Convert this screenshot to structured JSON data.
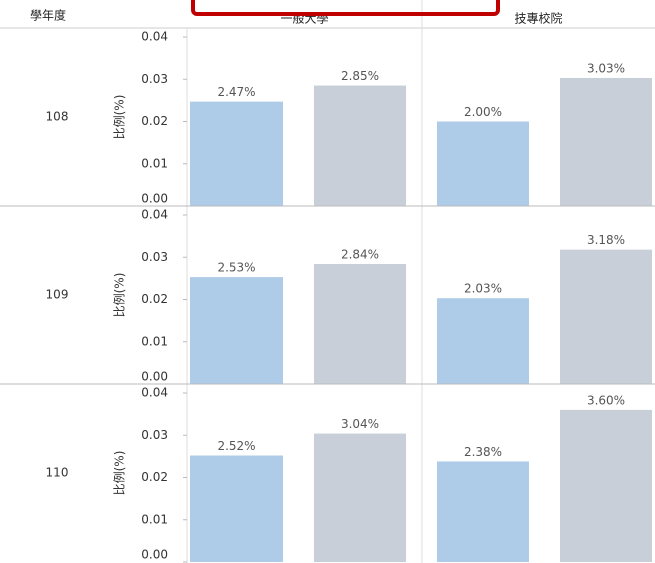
{
  "chart_data": {
    "type": "bar",
    "row_header": "學年度",
    "y_label": "比例(%)",
    "columns": [
      "一般大學",
      "技專校院"
    ],
    "colors": [
      "#aecbe8",
      "#c9cfd8"
    ],
    "ylim": [
      0,
      0.04
    ],
    "yticks": [
      {
        "value": 0,
        "label": "0.00"
      },
      0.01,
      0.02,
      0.03,
      0.04
    ],
    "rows": [
      {
        "label": "108",
        "cells": [
          {
            "values": [
              0.0247,
              0.0285
            ],
            "value_labels": [
              "2.47%",
              "2.85%"
            ]
          },
          {
            "values": [
              0.02,
              0.0303
            ],
            "value_labels": [
              "2.00%",
              "3.03%"
            ]
          }
        ]
      },
      {
        "label": "109",
        "cells": [
          {
            "values": [
              0.0253,
              0.0284
            ],
            "value_labels": [
              "2.53%",
              "2.84%"
            ]
          },
          {
            "values": [
              0.0203,
              0.0318
            ],
            "value_labels": [
              "2.03%",
              "3.18%"
            ]
          }
        ]
      },
      {
        "label": "110",
        "cells": [
          {
            "values": [
              0.0252,
              0.0304
            ],
            "value_labels": [
              "2.52%",
              "3.04%"
            ]
          },
          {
            "values": [
              0.0238,
              0.036
            ],
            "value_labels": [
              "2.38%",
              "3.60%"
            ]
          }
        ]
      }
    ]
  }
}
